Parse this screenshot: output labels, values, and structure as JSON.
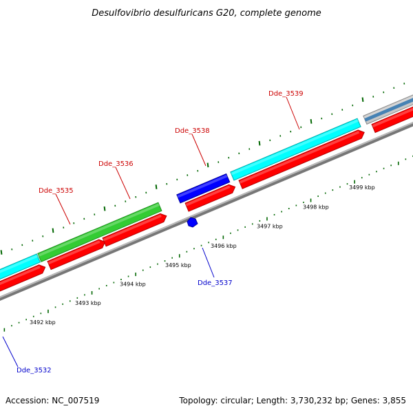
{
  "title": "Desulfovibrio desulfuricans G20, complete genome",
  "footer": {
    "accession": "Accession: NC_007519",
    "summary": "Topology: circular; Length: 3,730,232 bp; Genes: 3,855"
  },
  "axis": {
    "ticks": [
      "3492 kbp",
      "3493 kbp",
      "3494 kbp",
      "3495 kbp",
      "3496 kbp",
      "3497 kbp",
      "3498 kbp",
      "3499 kbp"
    ]
  },
  "gene_labels": [
    {
      "text": "Dde_3539",
      "color": "#cc0000"
    },
    {
      "text": "Dde_3538",
      "color": "#cc0000"
    },
    {
      "text": "Dde_3536",
      "color": "#cc0000"
    },
    {
      "text": "Dde_3535",
      "color": "#cc0000"
    },
    {
      "text": "Dde_3537",
      "color": "#0000cc"
    },
    {
      "text": "Dde_3532",
      "color": "#0000cc"
    }
  ],
  "colors": {
    "cds": "#ff0000",
    "cds_dark": "#b30000",
    "cyan": "#00ffff",
    "cyan_dark": "#00aaaa",
    "green": "#33cc33",
    "green_dark": "#1f8f1f",
    "blue": "#0000ff",
    "blue_dark": "#000099",
    "gray": "#c8c8c8",
    "steel": "#4682b4",
    "backbone": "#999999",
    "tick": "#006600"
  }
}
